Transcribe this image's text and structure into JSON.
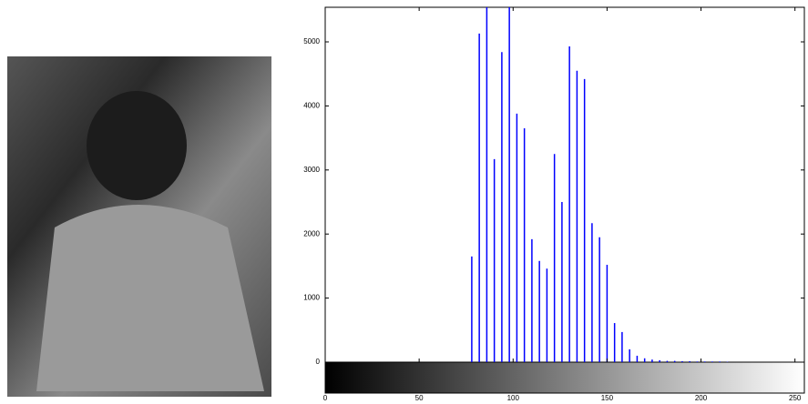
{
  "chart_data": {
    "type": "stem",
    "color": "#0000ff",
    "x": [
      78,
      82,
      86,
      90,
      94,
      98,
      102,
      106,
      110,
      114,
      118,
      122,
      126,
      130,
      134,
      138,
      142,
      146,
      150,
      154,
      158,
      162,
      166,
      170,
      174,
      178,
      182,
      186,
      190,
      194,
      198,
      202,
      206,
      210,
      214
    ],
    "values": [
      1650,
      5130,
      5540,
      3170,
      4840,
      5540,
      3880,
      3650,
      1920,
      1580,
      1460,
      3250,
      2500,
      4930,
      4550,
      4420,
      2170,
      1950,
      1520,
      610,
      470,
      200,
      100,
      60,
      40,
      30,
      20,
      20,
      15,
      15,
      10,
      10,
      10,
      10,
      5
    ],
    "xlim": [
      0,
      255
    ],
    "xticks": [
      0,
      50,
      100,
      150,
      200,
      250
    ],
    "ylim": [
      0,
      5540
    ],
    "yticks": [
      0,
      1000,
      2000,
      3000,
      4000,
      5000
    ]
  }
}
